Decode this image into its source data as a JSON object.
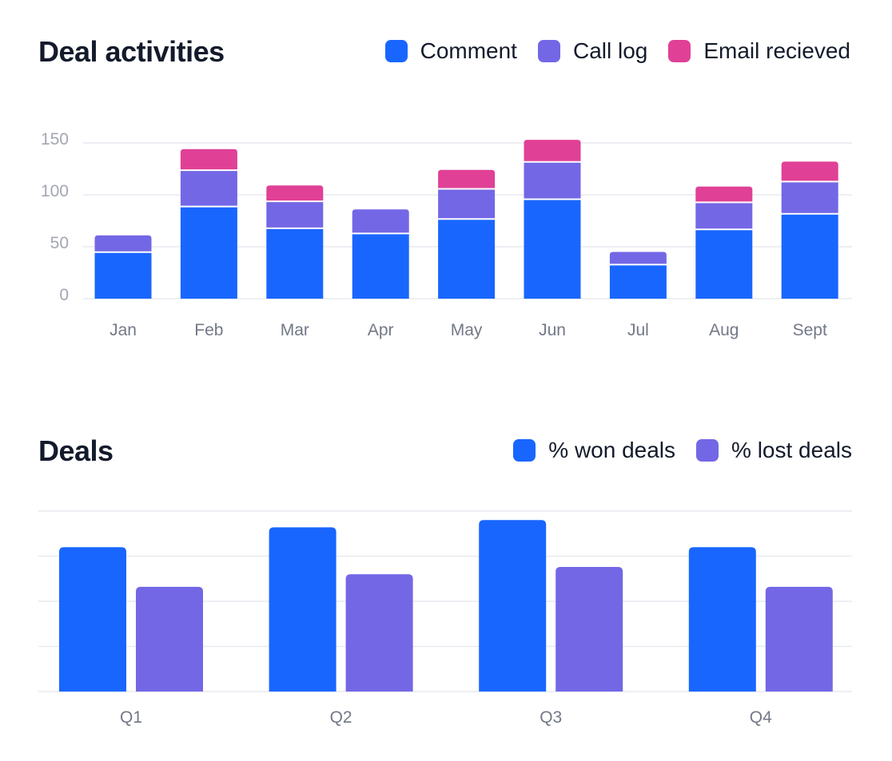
{
  "colors": {
    "comment": "#1966FF",
    "call_log": "#7367E6",
    "email": "#E04096",
    "grid": "#E8EAF0",
    "tick": "#A3A7B4",
    "xtick": "#737888"
  },
  "chart_data": [
    {
      "type": "bar",
      "stacked": true,
      "title": "Deal activities",
      "categories": [
        "Jan",
        "Feb",
        "Mar",
        "Apr",
        "May",
        "Jun",
        "Jul",
        "Aug",
        "Sept"
      ],
      "series": [
        {
          "name": "Comment",
          "color_key": "comment",
          "values": [
            44,
            88,
            67,
            62,
            76,
            95,
            32,
            66,
            81
          ]
        },
        {
          "name": "Call log",
          "color_key": "call_log",
          "values": [
            17,
            35,
            26,
            24,
            29,
            36,
            13,
            26,
            31
          ]
        },
        {
          "name": "Email recieved",
          "color_key": "email",
          "values": [
            0,
            21,
            16,
            0,
            19,
            22,
            0,
            16,
            20
          ]
        }
      ],
      "yticks": [
        "0",
        "50",
        "100",
        "150"
      ],
      "ytick_values": [
        0,
        50,
        100,
        150
      ],
      "ylim": [
        0,
        150
      ],
      "grid": true,
      "legend": "top-right",
      "xlabel": "",
      "ylabel": ""
    },
    {
      "type": "bar",
      "stacked": false,
      "title": "Deals",
      "categories": [
        "Q1",
        "Q2",
        "Q3",
        "Q4"
      ],
      "series": [
        {
          "name": "% won deals",
          "color_key": "comment",
          "values": [
            80,
            91,
            95,
            80
          ]
        },
        {
          "name": "% lost deals",
          "color_key": "call_log",
          "values": [
            58,
            65,
            69,
            58
          ]
        }
      ],
      "ylim": [
        0,
        100
      ],
      "grid_values": [
        0,
        25,
        50,
        75,
        100
      ],
      "grid": true,
      "legend": "top-right",
      "xlabel": "",
      "ylabel": ""
    }
  ]
}
